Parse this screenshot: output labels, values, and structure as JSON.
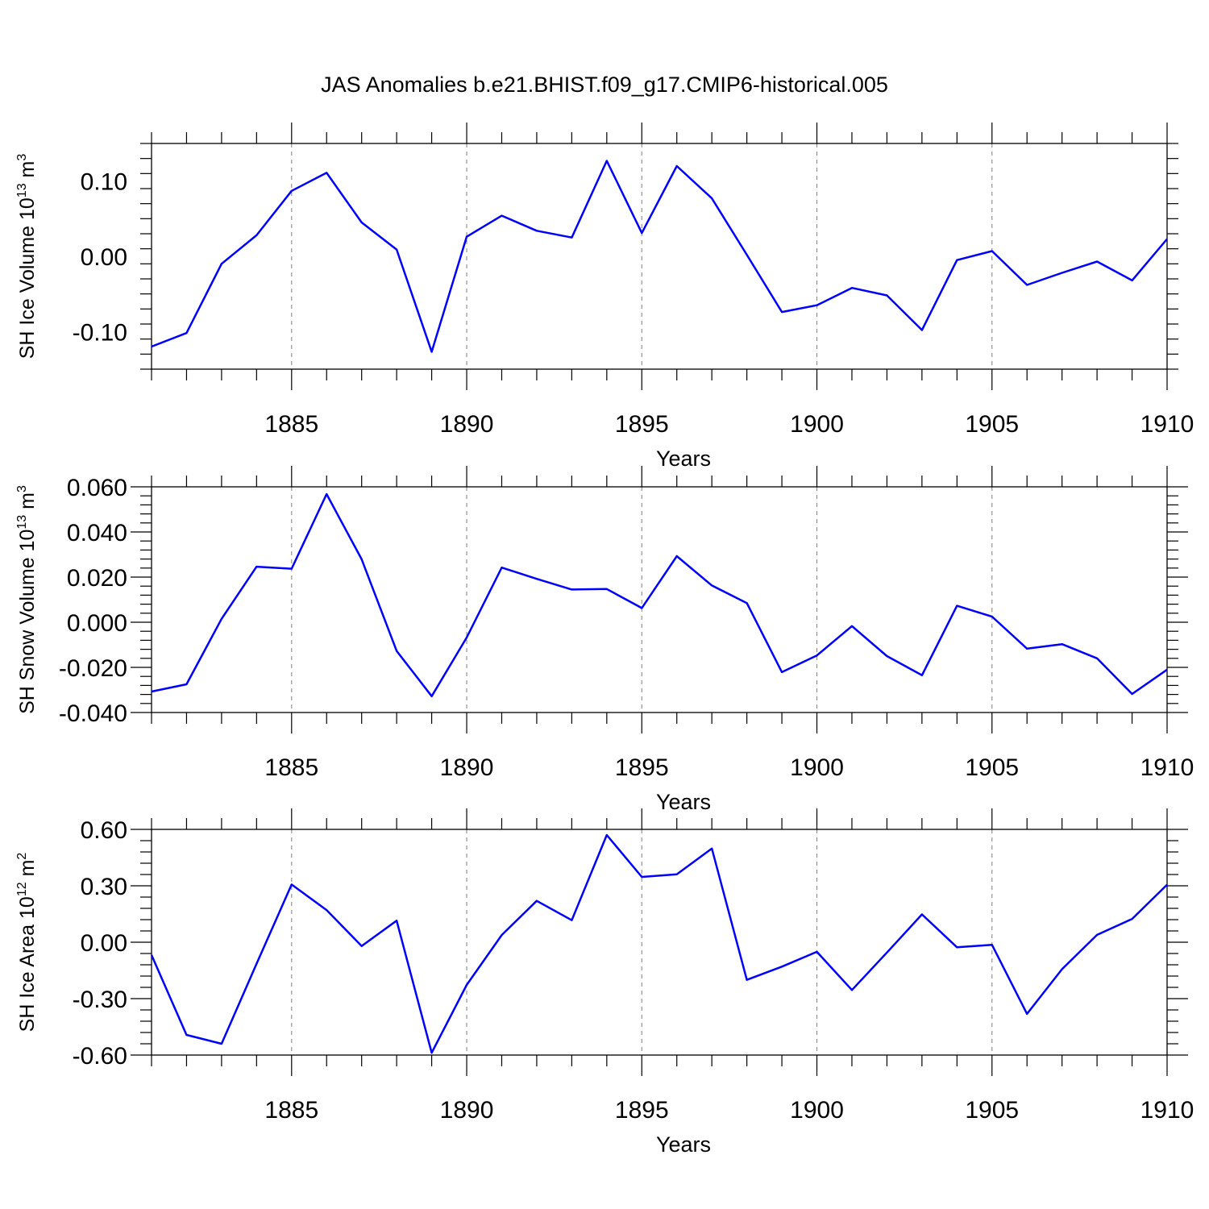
{
  "title": "JAS Anomalies b.e21.BHIST.f09_g17.CMIP6-historical.005",
  "colors": {
    "line": "#0000ff",
    "grid": "#8a8a8a",
    "axis": "#000000"
  },
  "chart_data": [
    {
      "type": "line",
      "ylabel": "SH Ice Volume 10^13 m^3",
      "ylabel_parts": {
        "main": "SH Ice Volume 10",
        "exp1": "13",
        "unit": " m",
        "exp2": "3"
      },
      "xlabel": "Years",
      "xlim": [
        1881,
        1910
      ],
      "ylim": [
        -0.15,
        0.15
      ],
      "yticks": [
        -0.1,
        0.0,
        0.1
      ],
      "ytick_labels": [
        "-0.10",
        "0.00",
        "0.10"
      ],
      "xticks": [
        1885,
        1890,
        1895,
        1900,
        1905,
        1910
      ],
      "xtick_labels": [
        "1885",
        "1890",
        "1895",
        "1900",
        "1905",
        "1910"
      ],
      "grid": "vertical dashed at major x ticks",
      "x": [
        1881,
        1882,
        1883,
        1884,
        1885,
        1886,
        1887,
        1888,
        1889,
        1890,
        1891,
        1892,
        1893,
        1894,
        1895,
        1896,
        1897,
        1898,
        1899,
        1900,
        1901,
        1902,
        1903,
        1904,
        1905,
        1906,
        1907,
        1908,
        1909,
        1910
      ],
      "series": [
        {
          "values": [
            -0.12,
            -0.102,
            -0.01,
            0.028,
            0.087,
            0.111,
            0.045,
            0.009,
            -0.127,
            0.026,
            0.054,
            0.034,
            0.025,
            0.127,
            0.031,
            0.12,
            0.077,
            0.002,
            -0.074,
            -0.065,
            -0.042,
            -0.052,
            -0.098,
            -0.005,
            0.007,
            -0.038,
            -0.022,
            -0.007,
            -0.032,
            0.023
          ]
        }
      ]
    },
    {
      "type": "line",
      "ylabel": "SH Snow Volume 10^13 m^3",
      "ylabel_parts": {
        "main": "SH Snow Volume 10",
        "exp1": "13",
        "unit": " m",
        "exp2": "3"
      },
      "xlabel": "Years",
      "xlim": [
        1881,
        1910
      ],
      "ylim": [
        -0.04,
        0.06
      ],
      "yticks": [
        -0.04,
        -0.02,
        0.0,
        0.02,
        0.04,
        0.06
      ],
      "ytick_labels": [
        "-0.040",
        "-0.020",
        "0.000",
        "0.020",
        "0.040",
        "0.060"
      ],
      "xticks": [
        1885,
        1890,
        1895,
        1900,
        1905,
        1910
      ],
      "xtick_labels": [
        "1885",
        "1890",
        "1895",
        "1900",
        "1905",
        "1910"
      ],
      "grid": "vertical dashed at major x ticks",
      "x": [
        1881,
        1882,
        1883,
        1884,
        1885,
        1886,
        1887,
        1888,
        1889,
        1890,
        1891,
        1892,
        1893,
        1894,
        1895,
        1896,
        1897,
        1898,
        1899,
        1900,
        1901,
        1902,
        1903,
        1904,
        1905,
        1906,
        1907,
        1908,
        1909,
        1910
      ],
      "series": [
        {
          "values": [
            -0.0307,
            -0.0275,
            0.0015,
            0.0246,
            0.0237,
            0.0568,
            0.0279,
            -0.0127,
            -0.0328,
            -0.0068,
            0.0242,
            0.0192,
            0.0145,
            0.0147,
            0.0063,
            0.0293,
            0.0163,
            0.0085,
            -0.0221,
            -0.0147,
            -0.0017,
            -0.015,
            -0.0235,
            0.0073,
            0.0025,
            -0.0117,
            -0.0097,
            -0.016,
            -0.0318,
            -0.021
          ]
        }
      ]
    },
    {
      "type": "line",
      "ylabel": "SH Ice Area 10^12 m^2",
      "ylabel_parts": {
        "main": "SH Ice Area 10",
        "exp1": "12",
        "unit": " m",
        "exp2": "2"
      },
      "xlabel": "Years",
      "xlim": [
        1881,
        1910
      ],
      "ylim": [
        -0.6,
        0.6
      ],
      "yticks": [
        -0.6,
        -0.3,
        0.0,
        0.3,
        0.6
      ],
      "ytick_labels": [
        "-0.60",
        "-0.30",
        "0.00",
        "0.30",
        "0.60"
      ],
      "xticks": [
        1885,
        1890,
        1895,
        1900,
        1905,
        1910
      ],
      "xtick_labels": [
        "1885",
        "1890",
        "1895",
        "1900",
        "1905",
        "1910"
      ],
      "grid": "vertical dashed at major x ticks",
      "x": [
        1881,
        1882,
        1883,
        1884,
        1885,
        1886,
        1887,
        1888,
        1889,
        1890,
        1891,
        1892,
        1893,
        1894,
        1895,
        1896,
        1897,
        1898,
        1899,
        1900,
        1901,
        1902,
        1903,
        1904,
        1905,
        1906,
        1907,
        1908,
        1909,
        1910
      ],
      "series": [
        {
          "values": [
            -0.068,
            -0.493,
            -0.54,
            -0.115,
            0.307,
            0.171,
            -0.02,
            0.115,
            -0.588,
            -0.227,
            0.038,
            0.22,
            0.117,
            0.57,
            0.347,
            0.361,
            0.498,
            -0.2,
            -0.13,
            -0.051,
            -0.254,
            -0.055,
            0.148,
            -0.027,
            -0.014,
            -0.381,
            -0.143,
            0.039,
            0.124,
            0.306
          ]
        }
      ]
    }
  ]
}
